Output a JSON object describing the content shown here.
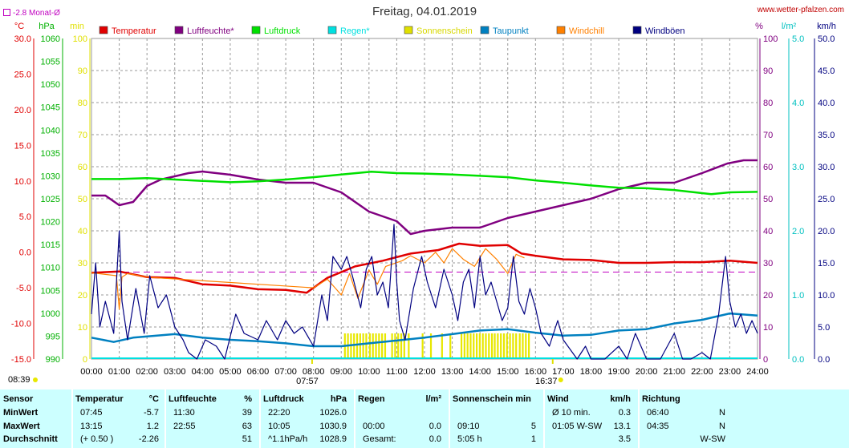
{
  "title": "Freitag, 04.01.2019",
  "source": "www.wetter-pfalzen.com",
  "monthly_avg_label": "-2.8 Monat-Ø",
  "axis_units": {
    "temp": "°C",
    "pressure": "hPa",
    "sun": "min",
    "humidity": "%",
    "rain": "l/m²",
    "wind": "km/h"
  },
  "legend": [
    {
      "label": "Temperatur",
      "color": "#e00000"
    },
    {
      "label": "Luftfeuchte*",
      "color": "#800080"
    },
    {
      "label": "Luftdruck",
      "color": "#00e000"
    },
    {
      "label": "Regen*",
      "color": "#00e0e0"
    },
    {
      "label": "Sonnenschein",
      "color": "#e0e000"
    },
    {
      "label": "Taupunkt",
      "color": "#0080c0"
    },
    {
      "label": "Windchill",
      "color": "#ff8000"
    },
    {
      "label": "Windböen",
      "color": "#000080"
    }
  ],
  "sunrise": "08:39",
  "sunset": "16:37",
  "sun_window": {
    "start": "07:57",
    "end": "16:37"
  },
  "chart_data": {
    "type": "line",
    "x_unit": "hour",
    "x_ticks": [
      "00:00",
      "01:00",
      "02:00",
      "03:00",
      "04:00",
      "05:00",
      "06:00",
      "07:00",
      "08:00",
      "09:00",
      "10:00",
      "11:00",
      "12:00",
      "13:00",
      "14:00",
      "15:00",
      "16:00",
      "17:00",
      "18:00",
      "19:00",
      "20:00",
      "21:00",
      "22:00",
      "23:00",
      "24:00"
    ],
    "axes": {
      "temp": {
        "ticks": [
          "30.0",
          "25.0",
          "20.0",
          "15.0",
          "10.0",
          "5.0",
          "0.0",
          "-5.0",
          "-10.0",
          "-15.0"
        ],
        "range": [
          -15,
          30
        ]
      },
      "pressure": {
        "ticks": [
          "1060",
          "1055",
          "1050",
          "1045",
          "1040",
          "1035",
          "1030",
          "1025",
          "1020",
          "1015",
          "1010",
          "1005",
          "1000",
          "995",
          "990"
        ],
        "range": [
          990,
          1060
        ]
      },
      "sun": {
        "ticks": [
          "100",
          "90",
          "80",
          "70",
          "60",
          "50",
          "40",
          "30",
          "20",
          "10",
          "0"
        ],
        "range": [
          0,
          100
        ]
      },
      "humidity": {
        "ticks": [
          "100",
          "90",
          "80",
          "70",
          "60",
          "50",
          "40",
          "30",
          "20",
          "10",
          "0"
        ],
        "range": [
          0,
          100
        ]
      },
      "rain": {
        "ticks": [
          "5.0",
          "4.0",
          "3.0",
          "2.0",
          "1.0",
          "0.0"
        ],
        "range": [
          0,
          5
        ]
      },
      "wind": {
        "ticks": [
          "50.0",
          "45.0",
          "40.0",
          "35.0",
          "30.0",
          "25.0",
          "20.0",
          "15.0",
          "10.0",
          "5.0",
          "0.0"
        ],
        "range": [
          0,
          50
        ]
      }
    },
    "monthly_avg_temp": -2.8,
    "series": [
      {
        "name": "Temperatur",
        "axis": "temp",
        "color": "#e00000",
        "points": [
          [
            0,
            -2.9
          ],
          [
            1,
            -2.7
          ],
          [
            2,
            -3.5
          ],
          [
            3,
            -3.6
          ],
          [
            4,
            -4.5
          ],
          [
            5,
            -4.7
          ],
          [
            6,
            -5.2
          ],
          [
            7,
            -5.3
          ],
          [
            7.75,
            -5.7
          ],
          [
            8,
            -5.0
          ],
          [
            8.5,
            -3.6
          ],
          [
            9.5,
            -2.0
          ],
          [
            10.5,
            -1.2
          ],
          [
            11.5,
            -0.2
          ],
          [
            12.5,
            0.3
          ],
          [
            13.25,
            1.2
          ],
          [
            14,
            0.9
          ],
          [
            15,
            1.0
          ],
          [
            15.5,
            -0.2
          ],
          [
            16,
            -0.5
          ],
          [
            17,
            -1.0
          ],
          [
            18,
            -1.1
          ],
          [
            19,
            -1.5
          ],
          [
            20,
            -1.5
          ],
          [
            21,
            -1.4
          ],
          [
            22,
            -1.4
          ],
          [
            23,
            -1.2
          ],
          [
            24,
            -1.5
          ]
        ]
      },
      {
        "name": "Luftfeuchte",
        "axis": "humidity",
        "color": "#800080",
        "points": [
          [
            0,
            51
          ],
          [
            0.5,
            51
          ],
          [
            1,
            48
          ],
          [
            1.5,
            49
          ],
          [
            2,
            54
          ],
          [
            2.5,
            56
          ],
          [
            3,
            57
          ],
          [
            3.5,
            58
          ],
          [
            4,
            58.5
          ],
          [
            5,
            57.5
          ],
          [
            6,
            56
          ],
          [
            7,
            55
          ],
          [
            8,
            55
          ],
          [
            9,
            52
          ],
          [
            10,
            46
          ],
          [
            11,
            43
          ],
          [
            11.5,
            39
          ],
          [
            12,
            40
          ],
          [
            13,
            41
          ],
          [
            14,
            41
          ],
          [
            15,
            44
          ],
          [
            16,
            46
          ],
          [
            17,
            48
          ],
          [
            18,
            50
          ],
          [
            19,
            53
          ],
          [
            20,
            55
          ],
          [
            21,
            55
          ],
          [
            22,
            58
          ],
          [
            22.917,
            61
          ],
          [
            23.5,
            62
          ],
          [
            24,
            62
          ]
        ]
      },
      {
        "name": "Luftdruck",
        "axis": "pressure",
        "color": "#00e000",
        "points": [
          [
            0,
            1029.3
          ],
          [
            1,
            1029.3
          ],
          [
            2,
            1029.5
          ],
          [
            3,
            1029.2
          ],
          [
            4,
            1028.9
          ],
          [
            5,
            1028.6
          ],
          [
            6,
            1028.8
          ],
          [
            7,
            1029.2
          ],
          [
            8,
            1029.7
          ],
          [
            9,
            1030.3
          ],
          [
            10.083,
            1030.9
          ],
          [
            11,
            1030.6
          ],
          [
            12,
            1030.5
          ],
          [
            13,
            1030.3
          ],
          [
            14,
            1030.0
          ],
          [
            15,
            1029.7
          ],
          [
            16,
            1029.0
          ],
          [
            17,
            1028.5
          ],
          [
            18,
            1027.9
          ],
          [
            19,
            1027.4
          ],
          [
            20,
            1027.3
          ],
          [
            21,
            1026.9
          ],
          [
            22.333,
            1026.0
          ],
          [
            23,
            1026.4
          ],
          [
            24,
            1026.5
          ]
        ]
      },
      {
        "name": "Taupunkt",
        "axis": "temp",
        "color": "#0080c0",
        "points": [
          [
            0,
            -12
          ],
          [
            0.8,
            -12.6
          ],
          [
            1.5,
            -12.0
          ],
          [
            3,
            -11.5
          ],
          [
            4,
            -12.0
          ],
          [
            5,
            -12.3
          ],
          [
            6,
            -12.5
          ],
          [
            7,
            -12.8
          ],
          [
            8,
            -13.2
          ],
          [
            9,
            -13.2
          ],
          [
            10,
            -12.8
          ],
          [
            11,
            -12.4
          ],
          [
            12,
            -12.0
          ],
          [
            13,
            -11.5
          ],
          [
            14,
            -11.0
          ],
          [
            15,
            -10.8
          ],
          [
            16,
            -11.3
          ],
          [
            17,
            -11.7
          ],
          [
            18,
            -11.6
          ],
          [
            19,
            -11.0
          ],
          [
            20,
            -10.8
          ],
          [
            21,
            -10.0
          ],
          [
            22,
            -9.5
          ],
          [
            23,
            -8.6
          ],
          [
            24,
            -8.9
          ]
        ]
      },
      {
        "name": "Windchill",
        "axis": "temp",
        "color": "#ff8000",
        "points": [
          [
            0,
            -2.9
          ],
          [
            0.9,
            -3.3
          ],
          [
            1,
            -8.0
          ],
          [
            1.1,
            -3.5
          ],
          [
            1.3,
            -3.0
          ],
          [
            2,
            -3.5
          ],
          [
            8,
            -5.0
          ],
          [
            8.5,
            -3.8
          ],
          [
            9,
            -6.0
          ],
          [
            9.3,
            -3.0
          ],
          [
            9.6,
            -6.5
          ],
          [
            10,
            -2.5
          ],
          [
            10.3,
            -4.5
          ],
          [
            10.6,
            -2.0
          ],
          [
            11.2,
            -1.2
          ],
          [
            11.5,
            -0.5
          ],
          [
            12,
            -1.5
          ],
          [
            12.4,
            0.0
          ],
          [
            12.7,
            -1.5
          ],
          [
            13,
            0.5
          ],
          [
            13.4,
            -1.0
          ],
          [
            13.8,
            -2.0
          ],
          [
            14.2,
            0.5
          ],
          [
            14.6,
            -1.0
          ],
          [
            15,
            -3.0
          ],
          [
            15.3,
            -0.3
          ],
          [
            15.6,
            -0.8
          ]
        ]
      },
      {
        "name": "Windböen",
        "axis": "wind",
        "color": "#000080",
        "points": [
          [
            0,
            7
          ],
          [
            0.15,
            15
          ],
          [
            0.3,
            5
          ],
          [
            0.5,
            9
          ],
          [
            0.8,
            4
          ],
          [
            1,
            20
          ],
          [
            1.1,
            9
          ],
          [
            1.3,
            3
          ],
          [
            1.6,
            11
          ],
          [
            1.9,
            4
          ],
          [
            2.1,
            13
          ],
          [
            2.4,
            8
          ],
          [
            2.7,
            10
          ],
          [
            3,
            5
          ],
          [
            3.3,
            3
          ],
          [
            3.5,
            1
          ],
          [
            3.8,
            0
          ],
          [
            4.1,
            3
          ],
          [
            4.5,
            2
          ],
          [
            4.8,
            0
          ],
          [
            5.2,
            7
          ],
          [
            5.5,
            4
          ],
          [
            6,
            3
          ],
          [
            6.3,
            6
          ],
          [
            6.7,
            3
          ],
          [
            7,
            6
          ],
          [
            7.3,
            4
          ],
          [
            7.6,
            5
          ],
          [
            8,
            2
          ],
          [
            8.3,
            10
          ],
          [
            8.5,
            6
          ],
          [
            8.7,
            16
          ],
          [
            9,
            14
          ],
          [
            9.2,
            16
          ],
          [
            9.4,
            13
          ],
          [
            9.7,
            8
          ],
          [
            9.9,
            14
          ],
          [
            10.1,
            16
          ],
          [
            10.3,
            10
          ],
          [
            10.5,
            12
          ],
          [
            10.7,
            8
          ],
          [
            10.9,
            21
          ],
          [
            11,
            12
          ],
          [
            11.1,
            6
          ],
          [
            11.3,
            3
          ],
          [
            11.6,
            11
          ],
          [
            11.9,
            16
          ],
          [
            12.1,
            12
          ],
          [
            12.4,
            8
          ],
          [
            12.7,
            14
          ],
          [
            13,
            10
          ],
          [
            13.2,
            6
          ],
          [
            13.4,
            12
          ],
          [
            13.6,
            14
          ],
          [
            13.8,
            8
          ],
          [
            14,
            16
          ],
          [
            14.2,
            10
          ],
          [
            14.4,
            12
          ],
          [
            14.6,
            9
          ],
          [
            14.8,
            6
          ],
          [
            15,
            8
          ],
          [
            15.2,
            16
          ],
          [
            15.4,
            9
          ],
          [
            15.6,
            7
          ],
          [
            15.8,
            11
          ],
          [
            16,
            8
          ],
          [
            16.2,
            4
          ],
          [
            16.5,
            2
          ],
          [
            16.8,
            6
          ],
          [
            17,
            3
          ],
          [
            17.5,
            0
          ],
          [
            17.8,
            2
          ],
          [
            18,
            0
          ],
          [
            18.5,
            0
          ],
          [
            19,
            2
          ],
          [
            19.3,
            0
          ],
          [
            19.6,
            4
          ],
          [
            20,
            0
          ],
          [
            20.5,
            0
          ],
          [
            21,
            4
          ],
          [
            21.3,
            0
          ],
          [
            21.6,
            0
          ],
          [
            22,
            1
          ],
          [
            22.3,
            0
          ],
          [
            22.6,
            7
          ],
          [
            22.85,
            16
          ],
          [
            23,
            9
          ],
          [
            23.2,
            5
          ],
          [
            23.4,
            7
          ],
          [
            23.6,
            4
          ],
          [
            23.8,
            6
          ],
          [
            24,
            4
          ]
        ]
      }
    ],
    "sunshine_bars": [
      [
        9.1,
        9.9
      ],
      [
        10.0,
        10.6
      ],
      [
        10.8,
        11.3
      ],
      [
        11.4,
        11.5
      ],
      [
        11.9,
        12.0
      ],
      [
        12.2,
        12.3
      ],
      [
        12.6,
        12.7
      ],
      [
        12.9,
        13.0
      ],
      [
        13.3,
        14.4
      ],
      [
        14.5,
        15.3
      ],
      [
        15.4,
        15.8
      ]
    ]
  },
  "summary": {
    "columns": [
      {
        "key": "sensor",
        "rows": [
          "Sensor",
          "MinWert",
          "MaxWert",
          "Durchschnitt"
        ]
      },
      {
        "key": "temp",
        "header": "Temperatur",
        "unit": "°C",
        "rows": [
          [
            "07:45",
            "-5.7"
          ],
          [
            "13:15",
            "1.2"
          ],
          [
            "(+ 0.50 )",
            "-2.26"
          ]
        ]
      },
      {
        "key": "hum",
        "header": "Luftfeuchte",
        "unit": "%",
        "rows": [
          [
            "11:30",
            "39"
          ],
          [
            "22:55",
            "63"
          ],
          [
            "",
            "51"
          ]
        ]
      },
      {
        "key": "press",
        "header": "Luftdruck",
        "unit": "hPa",
        "rows": [
          [
            "22:20",
            "1026.0"
          ],
          [
            "10:05",
            "1030.9"
          ],
          [
            "^1.1hPa/h",
            "1028.9"
          ]
        ]
      },
      {
        "key": "rain",
        "header": "Regen",
        "unit": "l/m²",
        "rows": [
          [
            "",
            ""
          ],
          [
            "00:00",
            "0.0"
          ],
          [
            "Gesamt:",
            "0.0"
          ]
        ]
      },
      {
        "key": "sun",
        "header": "Sonnenschein min",
        "unit": "",
        "rows": [
          [
            "",
            ""
          ],
          [
            "09:10",
            "5"
          ],
          [
            "5:05 h",
            "1"
          ]
        ]
      },
      {
        "key": "wind",
        "header": "Wind",
        "unit": "km/h",
        "rows": [
          [
            "Ø 10 min.",
            "0.3"
          ],
          [
            "01:05   W-SW",
            "13.1"
          ],
          [
            "",
            "3.5"
          ]
        ]
      },
      {
        "key": "dir",
        "header": "Richtung",
        "unit": "",
        "rows": [
          [
            "06:40",
            "N"
          ],
          [
            "04:35",
            "N"
          ],
          [
            "",
            "W-SW"
          ]
        ]
      }
    ]
  }
}
